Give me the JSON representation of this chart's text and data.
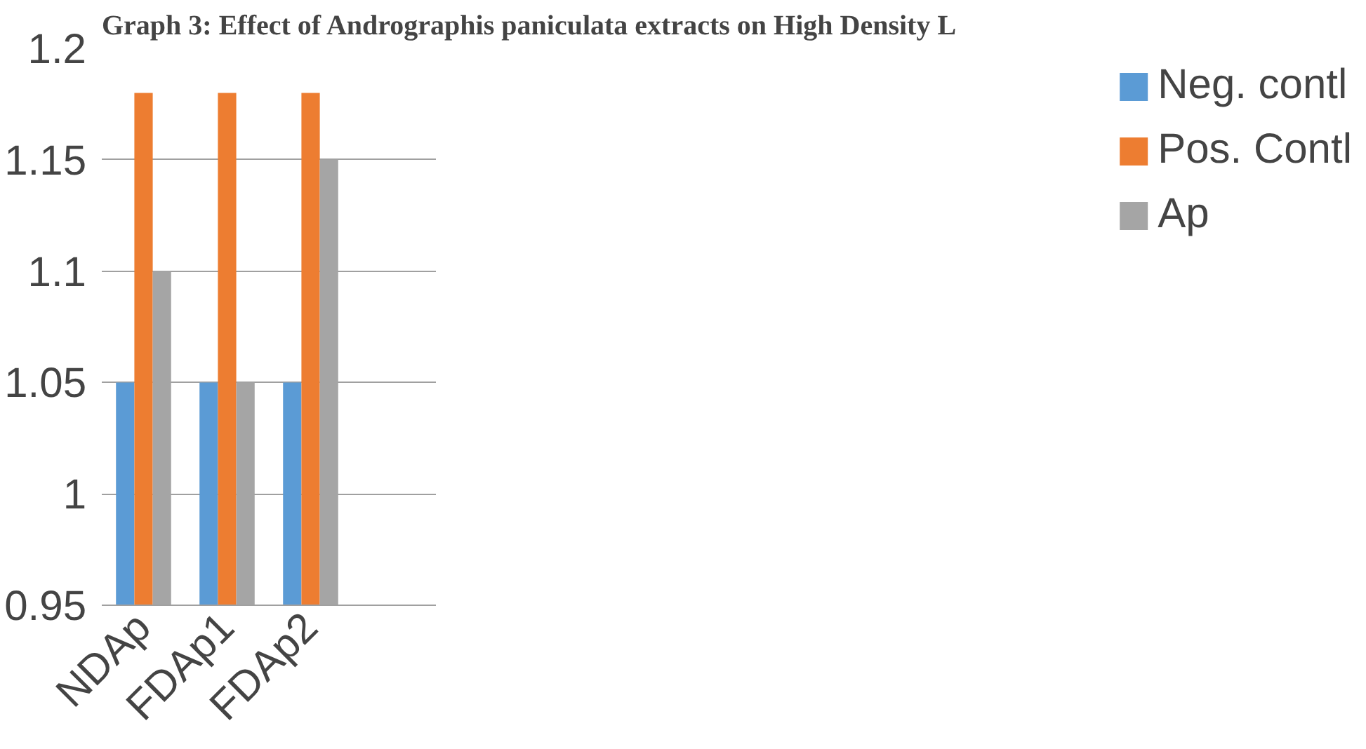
{
  "chart_data": {
    "type": "bar",
    "title": "Graph 3: Effect of Andrographis paniculata extracts on High Density L",
    "categories": [
      "NDAp",
      "FDAp1",
      "FDAp2",
      null
    ],
    "series": [
      {
        "name": "Neg. contl",
        "color": "#5b9bd5",
        "values": [
          1.05,
          1.05,
          1.05,
          null
        ]
      },
      {
        "name": "Pos. Contl",
        "color": "#ed7d31",
        "values": [
          1.18,
          1.18,
          1.18,
          null
        ]
      },
      {
        "name": "Ap",
        "color": "#a5a5a5",
        "values": [
          1.1,
          1.05,
          1.15,
          null
        ]
      }
    ],
    "ylim": [
      0.95,
      1.2
    ],
    "yticks": [
      0.95,
      1,
      1.05,
      1.1,
      1.15,
      1.2
    ],
    "grid": "y",
    "legend": "right"
  }
}
